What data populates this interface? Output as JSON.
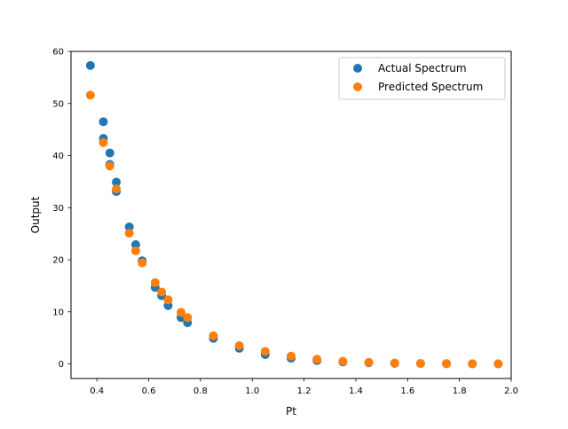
{
  "chart_data": {
    "type": "scatter",
    "title": "",
    "xlabel": "Pt",
    "ylabel": "Output",
    "xlim": [
      0.3,
      2.0
    ],
    "ylim": [
      -2.8,
      60
    ],
    "xticks": [
      0.4,
      0.6,
      0.8,
      1.0,
      1.2,
      1.4,
      1.6,
      1.8,
      2.0
    ],
    "xtick_labels": [
      "0.4",
      "0.6",
      "0.8",
      "1.0",
      "1.2",
      "1.4",
      "1.6",
      "1.8",
      "2.0"
    ],
    "yticks": [
      0,
      10,
      20,
      30,
      40,
      50,
      60
    ],
    "ytick_labels": [
      "0",
      "10",
      "20",
      "30",
      "40",
      "50",
      "60"
    ],
    "grid": false,
    "legend": "top-right",
    "series": [
      {
        "name": "Actual Spectrum",
        "color": "#1f77b4",
        "points": [
          [
            0.375,
            57.3
          ],
          [
            0.425,
            46.5
          ],
          [
            0.425,
            43.3
          ],
          [
            0.45,
            40.5
          ],
          [
            0.45,
            38.3
          ],
          [
            0.475,
            34.9
          ],
          [
            0.475,
            33.1
          ],
          [
            0.525,
            26.3
          ],
          [
            0.55,
            22.9
          ],
          [
            0.575,
            19.8
          ],
          [
            0.625,
            14.7
          ],
          [
            0.65,
            13.1
          ],
          [
            0.675,
            11.2
          ],
          [
            0.725,
            8.9
          ],
          [
            0.75,
            7.9
          ],
          [
            0.85,
            4.9
          ],
          [
            0.95,
            3.0
          ],
          [
            1.05,
            1.8
          ],
          [
            1.15,
            1.1
          ],
          [
            1.25,
            0.65
          ],
          [
            1.35,
            0.38
          ],
          [
            1.45,
            0.22
          ],
          [
            1.55,
            0.12
          ],
          [
            1.65,
            0.07
          ],
          [
            1.75,
            0.04
          ],
          [
            1.85,
            0.02
          ],
          [
            1.95,
            0.01
          ]
        ]
      },
      {
        "name": "Predicted Spectrum",
        "color": "#ff7f0e",
        "points": [
          [
            0.375,
            51.6
          ],
          [
            0.425,
            42.5
          ],
          [
            0.45,
            38.0
          ],
          [
            0.475,
            33.6
          ],
          [
            0.525,
            25.1
          ],
          [
            0.55,
            21.7
          ],
          [
            0.575,
            19.4
          ],
          [
            0.625,
            15.6
          ],
          [
            0.65,
            13.8
          ],
          [
            0.675,
            12.3
          ],
          [
            0.725,
            9.9
          ],
          [
            0.75,
            8.9
          ],
          [
            0.85,
            5.4
          ],
          [
            0.95,
            3.5
          ],
          [
            1.05,
            2.4
          ],
          [
            1.15,
            1.5
          ],
          [
            1.25,
            0.9
          ],
          [
            1.35,
            0.5
          ],
          [
            1.45,
            0.3
          ],
          [
            1.55,
            0.18
          ],
          [
            1.65,
            0.1
          ],
          [
            1.75,
            0.06
          ],
          [
            1.85,
            0.03
          ],
          [
            1.95,
            0.02
          ]
        ]
      }
    ]
  }
}
